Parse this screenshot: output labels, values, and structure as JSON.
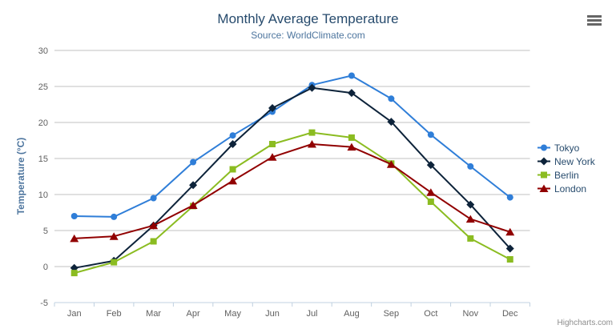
{
  "chart_data": {
    "type": "line",
    "title": "Monthly Average Temperature",
    "subtitle": "Source: WorldClimate.com",
    "xlabel": "",
    "ylabel": "Temperature (°C)",
    "categories": [
      "Jan",
      "Feb",
      "Mar",
      "Apr",
      "May",
      "Jun",
      "Jul",
      "Aug",
      "Sep",
      "Oct",
      "Nov",
      "Dec"
    ],
    "series": [
      {
        "name": "Tokyo",
        "color": "#2f7ed8",
        "marker": "circle",
        "values": [
          7.0,
          6.9,
          9.5,
          14.5,
          18.2,
          21.5,
          25.2,
          26.5,
          23.3,
          18.3,
          13.9,
          9.6
        ]
      },
      {
        "name": "New York",
        "color": "#0d233a",
        "marker": "diamond",
        "values": [
          -0.2,
          0.8,
          5.7,
          11.3,
          17.0,
          22.0,
          24.8,
          24.1,
          20.1,
          14.1,
          8.6,
          2.5
        ]
      },
      {
        "name": "Berlin",
        "color": "#8bbc21",
        "marker": "square",
        "values": [
          -0.9,
          0.6,
          3.5,
          8.4,
          13.5,
          17.0,
          18.6,
          17.9,
          14.3,
          9.0,
          3.9,
          1.0
        ]
      },
      {
        "name": "London",
        "color": "#910000",
        "marker": "triangle",
        "values": [
          3.9,
          4.2,
          5.7,
          8.5,
          11.9,
          15.2,
          17.0,
          16.6,
          14.2,
          10.3,
          6.6,
          4.8
        ]
      }
    ],
    "ylim": [
      -5,
      30
    ],
    "yticks": [
      -5,
      0,
      5,
      10,
      15,
      20,
      25,
      30
    ],
    "grid": true,
    "legend_position": "right",
    "colors": {
      "grid_line": "#c0c0c0",
      "axis_line": "#c0d0e0",
      "tick_label": "#606060",
      "title": "#274b6d",
      "subtitle": "#4d759e",
      "axis_title": "#4d759e",
      "legend_text": "#274b6d",
      "credit_text": "#8d8d8d",
      "menu_icon": "#666666"
    }
  },
  "credits": {
    "label": "Highcharts.com"
  }
}
